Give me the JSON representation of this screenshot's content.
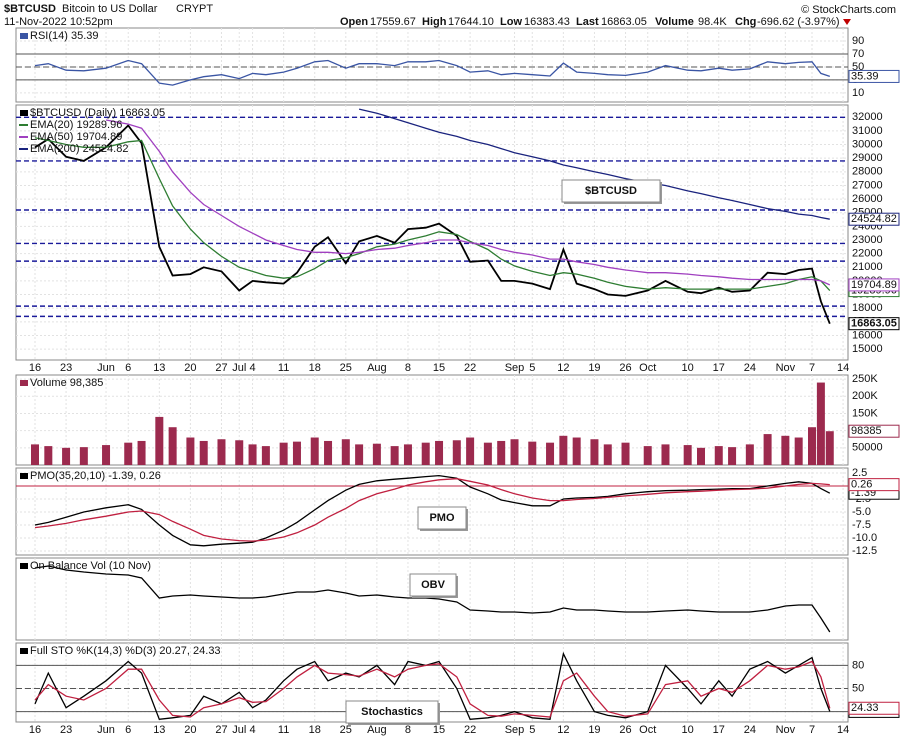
{
  "header": {
    "symbol": "$BTCUSD",
    "name": "Bitcoin to US Dollar",
    "exchange": "CRYPT",
    "date": "11-Nov-2022 10:52pm",
    "quote": [
      {
        "label": "Open",
        "value": "17559.67"
      },
      {
        "label": "High",
        "value": "17644.10"
      },
      {
        "label": "Low",
        "value": "16383.43"
      },
      {
        "label": "Last",
        "value": "16863.05"
      },
      {
        "label": "Volume",
        "value": "98.4K"
      },
      {
        "label": "Chg",
        "value": "-696.62 (-3.97%)"
      }
    ],
    "watermark": "© StockCharts.com"
  },
  "chart_data": [
    {
      "type": "line",
      "title": "RSI(14) 35.39",
      "ylim": [
        -4,
        110
      ],
      "yticks": [
        10,
        30,
        50,
        70,
        90
      ],
      "reference_lines": [
        30,
        50,
        70
      ],
      "grid": true,
      "series": [
        {
          "name": "RSI(14)",
          "color": "#3a55a4",
          "values": [
            52,
            55,
            45,
            44,
            48,
            60,
            55,
            25,
            22,
            30,
            35,
            38,
            32,
            40,
            38,
            42,
            48,
            58,
            60,
            48,
            55,
            55,
            52,
            58,
            58,
            60,
            52,
            42,
            44,
            38,
            40,
            38,
            36,
            56,
            42,
            40,
            38,
            37,
            42,
            52,
            45,
            44,
            48,
            45,
            47,
            58,
            55,
            57,
            58,
            40,
            35.39,
            null
          ]
        }
      ]
    },
    {
      "type": "line",
      "title": "$BTCUSD (Daily) 16863.05",
      "annotation": "$BTCUSD",
      "ylim": [
        14200,
        32900
      ],
      "yticks": [
        15000,
        16000,
        17000,
        18000,
        19000,
        20000,
        21000,
        22000,
        23000,
        24000,
        25000,
        26000,
        27000,
        28000,
        29000,
        30000,
        31000,
        32000
      ],
      "grid": true,
      "horizontal_lines": [
        32000,
        28800,
        25200,
        22750,
        21450,
        18150,
        17400
      ],
      "horizontal_line_color": "#1a1a9a",
      "categories": [
        "16",
        null,
        "23",
        null,
        "Jun",
        "6",
        null,
        "13",
        null,
        "20",
        null,
        "27",
        "Jul",
        "4",
        null,
        "11",
        null,
        "18",
        null,
        "25",
        null,
        "Aug",
        null,
        "8",
        null,
        "15",
        null,
        "22",
        null,
        null,
        "Sep",
        "5",
        null,
        "12",
        null,
        "19",
        null,
        "26",
        "Oct",
        null,
        "10",
        null,
        "17",
        null,
        "24",
        null,
        "Nov",
        null,
        "7",
        null,
        null,
        "14"
      ],
      "series": [
        {
          "name": "$BTCUSD",
          "color": "#000000",
          "values": [
            29800,
            30400,
            29100,
            28800,
            29800,
            31400,
            30100,
            22500,
            20400,
            20500,
            21000,
            20700,
            19300,
            20000,
            19900,
            19800,
            20600,
            22500,
            23200,
            21300,
            22900,
            23300,
            22800,
            23800,
            23900,
            24200,
            23300,
            21400,
            21500,
            20000,
            20000,
            19800,
            19400,
            22300,
            19800,
            19400,
            19000,
            18900,
            19300,
            20000,
            19200,
            19100,
            19500,
            19200,
            19300,
            20600,
            20500,
            20800,
            20900,
            18500,
            16863.05,
            null
          ]
        },
        {
          "name": "EMA(20) 19289.96",
          "color": "#2e7d32",
          "values": [
            30500,
            30300,
            30000,
            29800,
            29800,
            30200,
            30300,
            27500,
            25500,
            23800,
            22800,
            21800,
            21000,
            20700,
            20400,
            20200,
            20300,
            20900,
            21500,
            21700,
            22000,
            22500,
            22700,
            23000,
            23300,
            23600,
            23400,
            22900,
            22300,
            21600,
            21100,
            20700,
            20400,
            20600,
            20500,
            20200,
            19900,
            19600,
            19400,
            19500,
            19400,
            19400,
            19400,
            19400,
            19400,
            19600,
            19800,
            20100,
            20300,
            20000,
            19289.96,
            null
          ]
        },
        {
          "name": "EMA(50) 19704.89",
          "color": "#a040c0",
          "values": [
            null,
            null,
            null,
            null,
            31800,
            31500,
            31200,
            29500,
            28000,
            26500,
            25600,
            24800,
            24000,
            23500,
            23000,
            22600,
            22300,
            22100,
            22100,
            22000,
            22100,
            22300,
            22400,
            22600,
            22800,
            23000,
            23000,
            22800,
            22600,
            22300,
            22100,
            21900,
            21600,
            21600,
            21400,
            21200,
            21000,
            20800,
            20600,
            20600,
            20500,
            20400,
            20300,
            20200,
            20100,
            20100,
            20100,
            20100,
            20100,
            20000,
            19704.89,
            null
          ]
        },
        {
          "name": "EMA(200) 24524.82",
          "color": "#1a237e",
          "values": [
            null,
            null,
            null,
            null,
            null,
            null,
            null,
            null,
            null,
            null,
            null,
            null,
            null,
            null,
            null,
            null,
            null,
            null,
            null,
            null,
            32600,
            32300,
            31900,
            31600,
            31200,
            30900,
            30600,
            30300,
            30000,
            29700,
            29400,
            29100,
            28800,
            28500,
            28300,
            28000,
            27800,
            27500,
            27200,
            27000,
            26600,
            26400,
            26100,
            25900,
            25600,
            25300,
            25100,
            24900,
            24800,
            24650,
            24524.82,
            null
          ]
        }
      ]
    },
    {
      "type": "bar",
      "title": "Volume 98,385",
      "ylim": [
        0,
        262000
      ],
      "yticks": [
        50000,
        {
          "value": 100000,
          "label": "100K"
        },
        {
          "value": 150000,
          "label": "150K"
        },
        {
          "value": 200000,
          "label": "200K"
        },
        {
          "value": 250000,
          "label": "250K"
        }
      ],
      "grid": true,
      "series": [
        {
          "name": "Volume",
          "color": "#9c2a4e",
          "values": [
            60000,
            55000,
            50000,
            52000,
            58000,
            65000,
            70000,
            140000,
            110000,
            80000,
            70000,
            75000,
            72000,
            60000,
            55000,
            65000,
            68000,
            80000,
            70000,
            75000,
            60000,
            62000,
            55000,
            60000,
            65000,
            70000,
            72000,
            80000,
            65000,
            70000,
            75000,
            68000,
            65000,
            85000,
            80000,
            75000,
            60000,
            65000,
            55000,
            60000,
            58000,
            50000,
            55000,
            52000,
            60000,
            90000,
            85000,
            80000,
            110000,
            240000,
            98385,
            null
          ]
        }
      ]
    },
    {
      "type": "line",
      "title": "PMO(35,20,10) -1.39, 0.26",
      "annotation": "PMO",
      "ylim": [
        -13.27,
        3.46
      ],
      "yticks": [
        2.5,
        {
          "value": 0,
          "label": "0.0"
        },
        -2.5,
        {
          "value": -5,
          "label": "-5.0"
        },
        -7.5,
        {
          "value": -10,
          "label": "-10.0"
        },
        -12.5
      ],
      "reference_lines": [
        0
      ],
      "reference_color": "#c02040",
      "grid": true,
      "series": [
        {
          "name": "PMO",
          "color": "#000000",
          "values": [
            -7.5,
            -7,
            -6,
            -5,
            -4.2,
            -3.6,
            -4.5,
            -7.5,
            -9.5,
            -11.3,
            -11.5,
            -11.2,
            -11,
            -10.8,
            -10,
            -8.5,
            -7,
            -4.6,
            -2.8,
            -0.8,
            0.3,
            1,
            1.3,
            1.5,
            1.8,
            2,
            1.5,
            -0.2,
            -1.5,
            -2.7,
            -3.2,
            -3.8,
            -3.8,
            -2.5,
            -2.3,
            -2.2,
            -2,
            -1.5,
            -1.1,
            -0.9,
            -0.8,
            -0.7,
            -0.6,
            -0.5,
            -0.5,
            0,
            0.5,
            0.8,
            0.5,
            -0.5,
            -1.39,
            null
          ]
        },
        {
          "name": "Signal",
          "color": "#c02040",
          "values": [
            -8,
            -7.7,
            -7.2,
            -6.5,
            -5.8,
            -5,
            -4.8,
            -5.5,
            -6.8,
            -8.3,
            -9.5,
            -10.2,
            -10.5,
            -10.6,
            -10.4,
            -9.8,
            -9,
            -7.5,
            -6,
            -4.3,
            -2.8,
            -1.5,
            -0.6,
            0.2,
            0.8,
            1.2,
            1.4,
            0.9,
            0.2,
            -0.7,
            -1.5,
            -2.3,
            -2.8,
            -2.8,
            -2.6,
            -2.4,
            -2.2,
            -1.9,
            -1.6,
            -1.3,
            -1.1,
            -1,
            -0.8,
            -0.7,
            -0.6,
            -0.4,
            0,
            0.3,
            0.5,
            0.4,
            0.26,
            null
          ]
        }
      ]
    },
    {
      "type": "line",
      "title": "On Balance Vol (10 Nov)",
      "annotation": "OBV",
      "ylim": [
        0,
        82
      ],
      "yticks": [],
      "grid": false,
      "series": [
        {
          "name": "OBV",
          "color": "#000000",
          "values": [
            72,
            74,
            70,
            68,
            66,
            65,
            62,
            42,
            44,
            45,
            44,
            43,
            42,
            42,
            43,
            46,
            48,
            48,
            50,
            47,
            44,
            45,
            43,
            42,
            42,
            41,
            38,
            30,
            29,
            28,
            28,
            27,
            28,
            32,
            30,
            30,
            29,
            28,
            28,
            29,
            30,
            29,
            28,
            28,
            28,
            30,
            34,
            35,
            35,
            22,
            8,
            null
          ]
        }
      ]
    },
    {
      "type": "line",
      "title": "Full STO %K(14,3) %D(3) 20.27, 24.33",
      "annotation": "Stochastics",
      "ylim": [
        6.5,
        109
      ],
      "yticks": [
        20,
        50,
        80
      ],
      "reference_lines": [
        20,
        50,
        80
      ],
      "grid": true,
      "categories": [
        "16",
        null,
        "23",
        null,
        "Jun",
        "6",
        null,
        "13",
        null,
        "20",
        null,
        "27",
        "Jul",
        "4",
        null,
        "11",
        null,
        "18",
        null,
        "25",
        null,
        "Aug",
        null,
        "8",
        null,
        "15",
        null,
        "22",
        null,
        null,
        "Sep",
        "5",
        null,
        "12",
        null,
        "19",
        null,
        "26",
        "Oct",
        null,
        "10",
        null,
        "17",
        null,
        "24",
        null,
        "Nov",
        null,
        "7",
        null,
        null,
        "14"
      ],
      "series": [
        {
          "name": "%K",
          "color": "#000000",
          "values": [
            30,
            70,
            25,
            40,
            60,
            85,
            70,
            10,
            12,
            15,
            40,
            30,
            45,
            25,
            35,
            60,
            75,
            85,
            60,
            70,
            65,
            80,
            55,
            85,
            80,
            85,
            50,
            10,
            12,
            15,
            20,
            12,
            10,
            95,
            60,
            20,
            15,
            12,
            20,
            80,
            50,
            30,
            60,
            40,
            75,
            85,
            70,
            80,
            90,
            50,
            20.27,
            null
          ]
        },
        {
          "name": "%D",
          "color": "#c02040",
          "values": [
            35,
            55,
            40,
            35,
            50,
            75,
            75,
            35,
            15,
            13,
            25,
            30,
            38,
            32,
            33,
            50,
            65,
            80,
            70,
            68,
            66,
            75,
            65,
            75,
            80,
            82,
            65,
            30,
            15,
            14,
            17,
            15,
            13,
            60,
            70,
            40,
            20,
            14,
            17,
            55,
            60,
            40,
            50,
            45,
            60,
            80,
            75,
            78,
            85,
            65,
            24.33,
            null
          ]
        }
      ]
    }
  ]
}
